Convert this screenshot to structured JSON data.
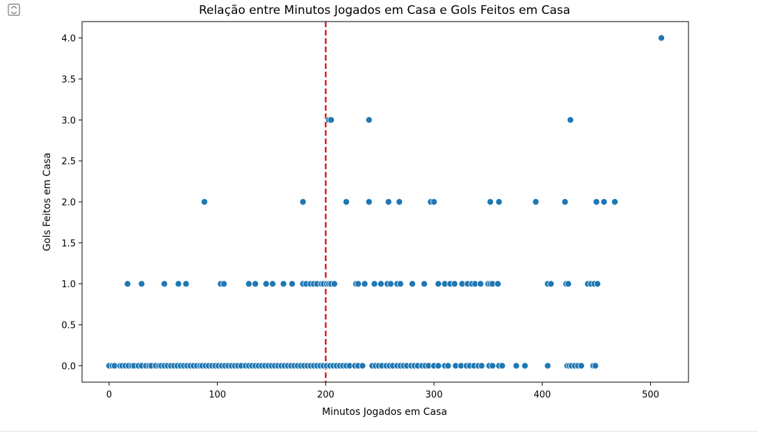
{
  "toolbar": {
    "icon": "expand-output-icon"
  },
  "chart_data": {
    "type": "scatter",
    "title": "Relação entre Minutos Jogados em Casa e Gols Feitos em Casa",
    "xlabel": "Minutos Jogados em Casa",
    "ylabel": "Gols Feitos em Casa",
    "xlim": [
      -25,
      535
    ],
    "ylim": [
      -0.2,
      4.2
    ],
    "xticks": [
      0,
      100,
      200,
      300,
      400,
      500
    ],
    "xtick_labels": [
      "0",
      "100",
      "200",
      "300",
      "400",
      "500"
    ],
    "yticks": [
      0.0,
      0.5,
      1.0,
      1.5,
      2.0,
      2.5,
      3.0,
      3.5,
      4.0
    ],
    "ytick_labels": [
      "0.0",
      "0.5",
      "1.0",
      "1.5",
      "2.0",
      "2.5",
      "3.0",
      "3.5",
      "4.0"
    ],
    "grid": false,
    "point_color": "#1f77b4",
    "reference_line": {
      "orientation": "vertical",
      "x": 200,
      "style": "dashed",
      "color": "#e41a1c"
    },
    "series": [
      {
        "points": [
          [
            0,
            0
          ],
          [
            3,
            0
          ],
          [
            5,
            0
          ],
          [
            10,
            0
          ],
          [
            12,
            0
          ],
          [
            15,
            0
          ],
          [
            18,
            0
          ],
          [
            21,
            0
          ],
          [
            23,
            0
          ],
          [
            27,
            0
          ],
          [
            30,
            0
          ],
          [
            34,
            0
          ],
          [
            37,
            0
          ],
          [
            39,
            0
          ],
          [
            43,
            0
          ],
          [
            46,
            0
          ],
          [
            48,
            0
          ],
          [
            51,
            0
          ],
          [
            54,
            0
          ],
          [
            57,
            0
          ],
          [
            60,
            0
          ],
          [
            63,
            0
          ],
          [
            66,
            0
          ],
          [
            69,
            0
          ],
          [
            72,
            0
          ],
          [
            75,
            0
          ],
          [
            78,
            0
          ],
          [
            81,
            0
          ],
          [
            84,
            0
          ],
          [
            86,
            0
          ],
          [
            89,
            0
          ],
          [
            92,
            0
          ],
          [
            95,
            0
          ],
          [
            98,
            0
          ],
          [
            101,
            0
          ],
          [
            104,
            0
          ],
          [
            107,
            0
          ],
          [
            110,
            0
          ],
          [
            113,
            0
          ],
          [
            116,
            0
          ],
          [
            119,
            0
          ],
          [
            122,
            0
          ],
          [
            126,
            0
          ],
          [
            129,
            0
          ],
          [
            132,
            0
          ],
          [
            135,
            0
          ],
          [
            138,
            0
          ],
          [
            141,
            0
          ],
          [
            144,
            0
          ],
          [
            147,
            0
          ],
          [
            150,
            0
          ],
          [
            153,
            0
          ],
          [
            156,
            0
          ],
          [
            159,
            0
          ],
          [
            162,
            0
          ],
          [
            165,
            0
          ],
          [
            168,
            0
          ],
          [
            171,
            0
          ],
          [
            174,
            0
          ],
          [
            177,
            0
          ],
          [
            180,
            0
          ],
          [
            183,
            0
          ],
          [
            186,
            0
          ],
          [
            189,
            0
          ],
          [
            192,
            0
          ],
          [
            195,
            0
          ],
          [
            198,
            0
          ],
          [
            201,
            0
          ],
          [
            204,
            0
          ],
          [
            207,
            0
          ],
          [
            210,
            0
          ],
          [
            213,
            0
          ],
          [
            216,
            0
          ],
          [
            219,
            0
          ],
          [
            222,
            0
          ],
          [
            227,
            0
          ],
          [
            230,
            0
          ],
          [
            234,
            0
          ],
          [
            243,
            0
          ],
          [
            246,
            0
          ],
          [
            249,
            0
          ],
          [
            252,
            0
          ],
          [
            256,
            0
          ],
          [
            259,
            0
          ],
          [
            262,
            0
          ],
          [
            266,
            0
          ],
          [
            269,
            0
          ],
          [
            272,
            0
          ],
          [
            275,
            0
          ],
          [
            279,
            0
          ],
          [
            282,
            0
          ],
          [
            285,
            0
          ],
          [
            289,
            0
          ],
          [
            292,
            0
          ],
          [
            295,
            0
          ],
          [
            300,
            0
          ],
          [
            304,
            0
          ],
          [
            310,
            0
          ],
          [
            313,
            0
          ],
          [
            320,
            0
          ],
          [
            325,
            0
          ],
          [
            330,
            0
          ],
          [
            333,
            0
          ],
          [
            337,
            0
          ],
          [
            341,
            0
          ],
          [
            344,
            0
          ],
          [
            351,
            0
          ],
          [
            354,
            0
          ],
          [
            360,
            0
          ],
          [
            363,
            0
          ],
          [
            376,
            0
          ],
          [
            384,
            0
          ],
          [
            405,
            0
          ],
          [
            423,
            0
          ],
          [
            425,
            0
          ],
          [
            427,
            0
          ],
          [
            430,
            0
          ],
          [
            433,
            0
          ],
          [
            436,
            0
          ],
          [
            447,
            0
          ],
          [
            449,
            0
          ],
          [
            17,
            1
          ],
          [
            30,
            1
          ],
          [
            51,
            1
          ],
          [
            64,
            1
          ],
          [
            71,
            1
          ],
          [
            103,
            1
          ],
          [
            106,
            1
          ],
          [
            129,
            1
          ],
          [
            135,
            1
          ],
          [
            145,
            1
          ],
          [
            151,
            1
          ],
          [
            161,
            1
          ],
          [
            169,
            1
          ],
          [
            179,
            1
          ],
          [
            182,
            1
          ],
          [
            186,
            1
          ],
          [
            189,
            1
          ],
          [
            192,
            1
          ],
          [
            196,
            1
          ],
          [
            198,
            1
          ],
          [
            201,
            1
          ],
          [
            203,
            1
          ],
          [
            205,
            1
          ],
          [
            208,
            1
          ],
          [
            228,
            1
          ],
          [
            230,
            1
          ],
          [
            236,
            1
          ],
          [
            245,
            1
          ],
          [
            251,
            1
          ],
          [
            257,
            1
          ],
          [
            260,
            1
          ],
          [
            266,
            1
          ],
          [
            269,
            1
          ],
          [
            280,
            1
          ],
          [
            291,
            1
          ],
          [
            304,
            1
          ],
          [
            310,
            1
          ],
          [
            315,
            1
          ],
          [
            319,
            1
          ],
          [
            326,
            1
          ],
          [
            331,
            1
          ],
          [
            335,
            1
          ],
          [
            338,
            1
          ],
          [
            343,
            1
          ],
          [
            350,
            1
          ],
          [
            352,
            1
          ],
          [
            354,
            1
          ],
          [
            359,
            1
          ],
          [
            405,
            1
          ],
          [
            408,
            1
          ],
          [
            422,
            1
          ],
          [
            424,
            1
          ],
          [
            442,
            1
          ],
          [
            445,
            1
          ],
          [
            448,
            1
          ],
          [
            451,
            1
          ],
          [
            88,
            2
          ],
          [
            179,
            2
          ],
          [
            219,
            2
          ],
          [
            240,
            2
          ],
          [
            258,
            2
          ],
          [
            268,
            2
          ],
          [
            297,
            2
          ],
          [
            300,
            2
          ],
          [
            352,
            2
          ],
          [
            360,
            2
          ],
          [
            394,
            2
          ],
          [
            421,
            2
          ],
          [
            450,
            2
          ],
          [
            457,
            2
          ],
          [
            467,
            2
          ],
          [
            203,
            3
          ],
          [
            205,
            3
          ],
          [
            240,
            3
          ],
          [
            426,
            3
          ],
          [
            510,
            4
          ]
        ]
      }
    ]
  }
}
